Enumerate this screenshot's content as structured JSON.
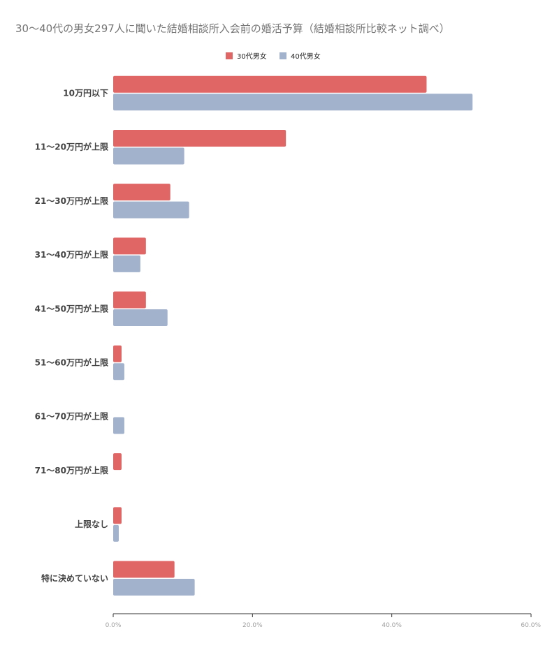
{
  "chart_data": {
    "type": "bar",
    "orientation": "horizontal",
    "title": "30～40代の男女297人に聞いた結婚相談所入会前の婚活予算（結婚相談所比較ネット調べ）",
    "categories": [
      "10万円以下",
      "11～20万円が上限",
      "21～30万円が上限",
      "31～40万円が上限",
      "41～50万円が上限",
      "51～60万円が上限",
      "61～70万円が上限",
      "71～80万円が上限",
      "上限なし",
      "特に決めていない"
    ],
    "series": [
      {
        "name": "30代男女",
        "color": "#e06666",
        "values": [
          45.0,
          24.8,
          8.2,
          4.7,
          4.7,
          1.2,
          0.0,
          1.2,
          1.2,
          8.8
        ]
      },
      {
        "name": "40代男女",
        "color": "#a2b2cd",
        "values": [
          51.6,
          10.2,
          10.9,
          3.9,
          7.8,
          1.6,
          1.6,
          0.0,
          0.8,
          11.7
        ]
      }
    ],
    "x_ticks": [
      "0.0%",
      "20.0%",
      "40.0%",
      "60.0%"
    ],
    "xlim": [
      0,
      60
    ],
    "legend": "top-center",
    "grid": false,
    "xlabel": "",
    "ylabel": ""
  }
}
